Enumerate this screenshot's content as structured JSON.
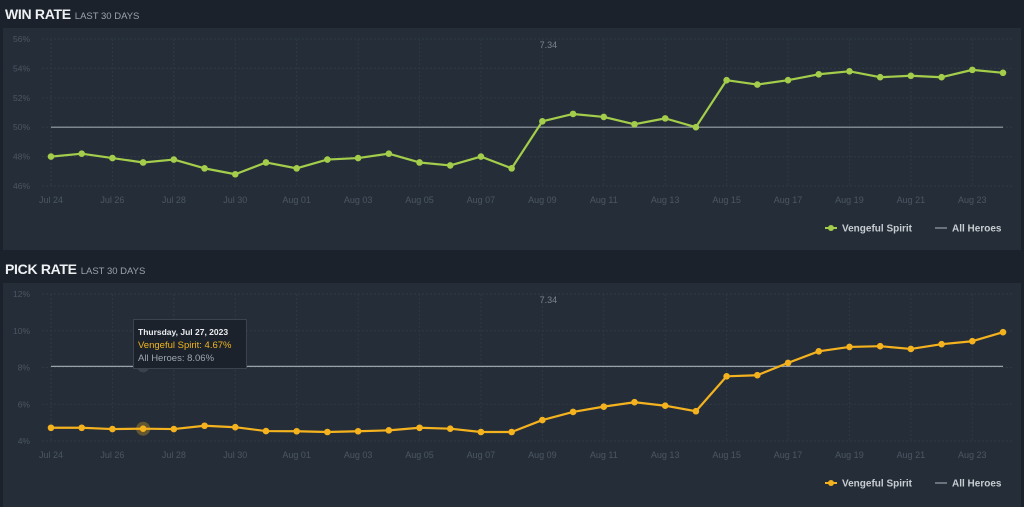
{
  "colors": {
    "win": "#a3cd4a",
    "pick": "#f5b21f",
    "all_heroes": "#9aa1a8",
    "background": "#1c222b",
    "panel": "#252e38"
  },
  "win_rate": {
    "title": "WIN RATE",
    "subtitle": "LAST 30 DAYS"
  },
  "pick_rate": {
    "title": "PICK RATE",
    "subtitle": "LAST 30 DAYS"
  },
  "tooltip": {
    "date": "Thursday, Jul 27, 2023",
    "hero_line": "Vengeful Spirit: 4.67%",
    "all_line": "All Heroes: 8.06%"
  },
  "chart_data": [
    {
      "type": "line",
      "title": "WIN RATE LAST 30 DAYS",
      "x": [
        "Jul 24",
        "Jul 25",
        "Jul 26",
        "Jul 27",
        "Jul 28",
        "Jul 29",
        "Jul 30",
        "Jul 31",
        "Aug 01",
        "Aug 02",
        "Aug 03",
        "Aug 04",
        "Aug 05",
        "Aug 06",
        "Aug 07",
        "Aug 08",
        "Aug 09",
        "Aug 10",
        "Aug 11",
        "Aug 12",
        "Aug 13",
        "Aug 14",
        "Aug 15",
        "Aug 16",
        "Aug 17",
        "Aug 18",
        "Aug 19",
        "Aug 20",
        "Aug 21",
        "Aug 22",
        "Aug 23",
        "Aug 24"
      ],
      "x_tick_labels": [
        "Jul 24",
        "Jul 26",
        "Jul 28",
        "Jul 30",
        "Aug 01",
        "Aug 03",
        "Aug 05",
        "Aug 07",
        "Aug 09",
        "Aug 11",
        "Aug 13",
        "Aug 15",
        "Aug 17",
        "Aug 19",
        "Aug 21",
        "Aug 23"
      ],
      "y_tick_labels": [
        "56%",
        "54%",
        "52%",
        "50%",
        "48%",
        "46%"
      ],
      "ylim": [
        46,
        56
      ],
      "grid": true,
      "legend": "bottom-right",
      "annotation": {
        "x": "Aug 09",
        "label": "7.34"
      },
      "series": [
        {
          "name": "Vengeful Spirit",
          "values": [
            48.0,
            48.2,
            47.9,
            47.6,
            47.8,
            47.2,
            46.8,
            47.6,
            47.2,
            47.8,
            47.9,
            48.2,
            47.6,
            47.4,
            48.0,
            47.2,
            50.4,
            50.9,
            50.7,
            50.2,
            50.6,
            50.0,
            53.2,
            52.9,
            53.2,
            53.6,
            53.8,
            53.4,
            53.5,
            53.4,
            53.9,
            53.7
          ]
        },
        {
          "name": "All Heroes",
          "values": [
            50,
            50,
            50,
            50,
            50,
            50,
            50,
            50,
            50,
            50,
            50,
            50,
            50,
            50,
            50,
            50,
            50,
            50,
            50,
            50,
            50,
            50,
            50,
            50,
            50,
            50,
            50,
            50,
            50,
            50,
            50,
            50
          ]
        }
      ]
    },
    {
      "type": "line",
      "title": "PICK RATE LAST 30 DAYS",
      "x": [
        "Jul 24",
        "Jul 25",
        "Jul 26",
        "Jul 27",
        "Jul 28",
        "Jul 29",
        "Jul 30",
        "Jul 31",
        "Aug 01",
        "Aug 02",
        "Aug 03",
        "Aug 04",
        "Aug 05",
        "Aug 06",
        "Aug 07",
        "Aug 08",
        "Aug 09",
        "Aug 10",
        "Aug 11",
        "Aug 12",
        "Aug 13",
        "Aug 14",
        "Aug 15",
        "Aug 16",
        "Aug 17",
        "Aug 18",
        "Aug 19",
        "Aug 20",
        "Aug 21",
        "Aug 22",
        "Aug 23",
        "Aug 24"
      ],
      "x_tick_labels": [
        "Jul 24",
        "Jul 26",
        "Jul 28",
        "Jul 30",
        "Aug 01",
        "Aug 03",
        "Aug 05",
        "Aug 07",
        "Aug 09",
        "Aug 11",
        "Aug 13",
        "Aug 15",
        "Aug 17",
        "Aug 19",
        "Aug 21",
        "Aug 23"
      ],
      "y_tick_labels": [
        "12%",
        "10%",
        "8%",
        "6%",
        "4%"
      ],
      "ylim": [
        4,
        12
      ],
      "grid": true,
      "legend": "bottom-right",
      "annotation": {
        "x": "Aug 09",
        "label": "7.34"
      },
      "highlight": "Jul 27",
      "series": [
        {
          "name": "Vengeful Spirit",
          "values": [
            4.72,
            4.72,
            4.65,
            4.67,
            4.65,
            4.83,
            4.75,
            4.54,
            4.53,
            4.49,
            4.53,
            4.58,
            4.72,
            4.67,
            4.49,
            4.49,
            5.14,
            5.58,
            5.87,
            6.11,
            5.92,
            5.62,
            7.52,
            7.58,
            8.25,
            8.88,
            9.12,
            9.16,
            9.01,
            9.27,
            9.43,
            9.92
          ]
        },
        {
          "name": "All Heroes",
          "values": [
            8.06,
            8.06,
            8.06,
            8.06,
            8.06,
            8.06,
            8.06,
            8.06,
            8.06,
            8.06,
            8.06,
            8.06,
            8.06,
            8.06,
            8.06,
            8.06,
            8.06,
            8.06,
            8.06,
            8.06,
            8.06,
            8.06,
            8.06,
            8.06,
            8.06,
            8.06,
            8.06,
            8.06,
            8.06,
            8.06,
            8.06,
            8.06
          ]
        }
      ]
    }
  ]
}
